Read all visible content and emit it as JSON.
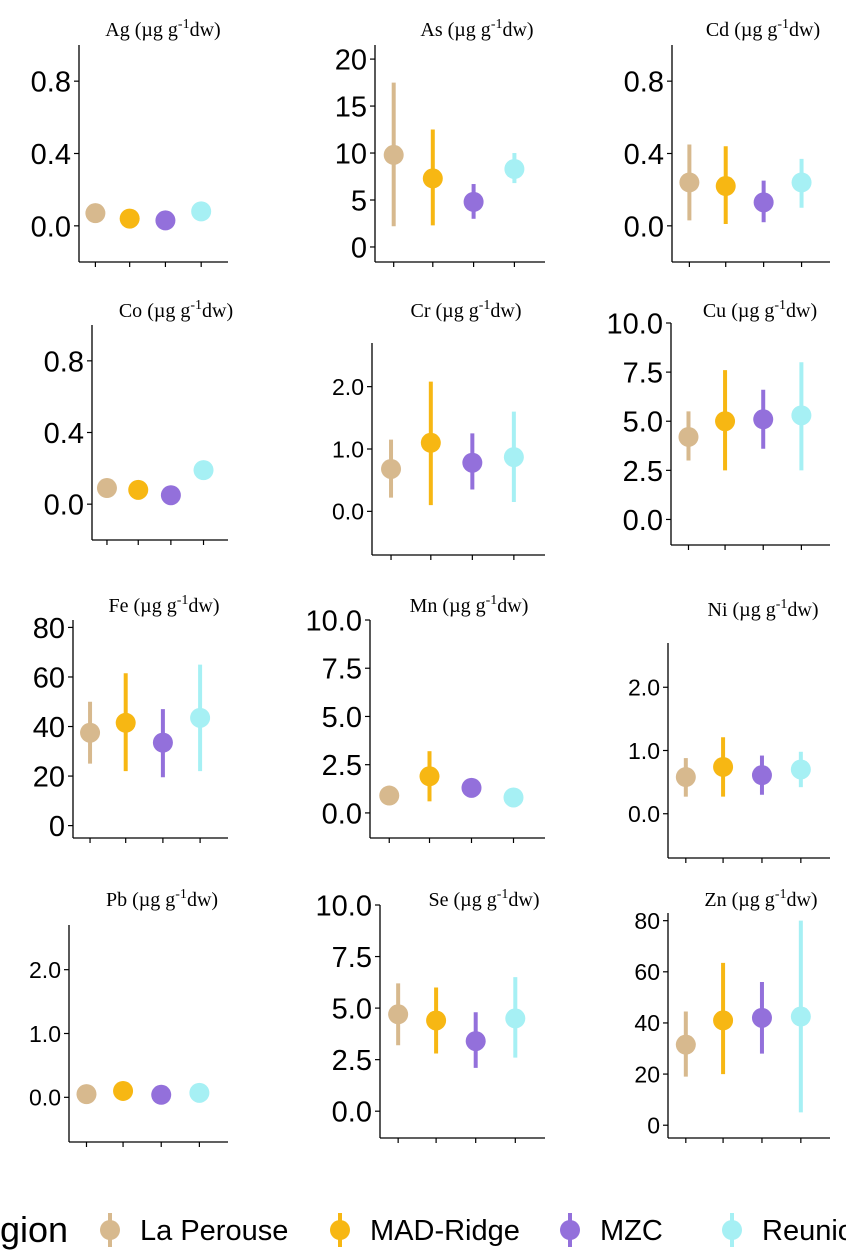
{
  "legend": {
    "title": "gion",
    "items": [
      {
        "label": "La Perouse",
        "color": "#d7b98e"
      },
      {
        "label": "MAD-Ridge",
        "color": "#f7b713"
      },
      {
        "label": "MZC",
        "color": "#9370db"
      },
      {
        "label": "Reunio",
        "color": "#a6f0f4"
      }
    ]
  },
  "chart_data": [
    {
      "type": "scatter",
      "element": "Ag",
      "unit": "(µg g",
      "sup": "-1",
      "unit_end": "dw)",
      "yticks": [
        "0.0",
        "0.4",
        "0.8"
      ],
      "ylim": [
        -0.2,
        1.0
      ],
      "points": [
        {
          "region": "La Perouse",
          "y": 0.07,
          "lo": 0.05,
          "hi": 0.09
        },
        {
          "region": "MAD-Ridge",
          "y": 0.04,
          "lo": 0.03,
          "hi": 0.05
        },
        {
          "region": "MZC",
          "y": 0.03,
          "lo": 0.02,
          "hi": 0.04
        },
        {
          "region": "Reunio",
          "y": 0.08,
          "lo": 0.04,
          "hi": 0.13
        }
      ]
    },
    {
      "type": "scatter",
      "element": "As",
      "unit": "(µg g",
      "sup": "-1",
      "unit_end": "dw)",
      "yticks": [
        "0",
        "5",
        "10",
        "15",
        "20"
      ],
      "ylim": [
        -1.6,
        21.5
      ],
      "points": [
        {
          "region": "La Perouse",
          "y": 9.8,
          "lo": 2.2,
          "hi": 17.5
        },
        {
          "region": "MAD-Ridge",
          "y": 7.3,
          "lo": 2.3,
          "hi": 12.5
        },
        {
          "region": "MZC",
          "y": 4.8,
          "lo": 3.0,
          "hi": 6.7
        },
        {
          "region": "Reunio",
          "y": 8.3,
          "lo": 6.8,
          "hi": 10.0
        }
      ]
    },
    {
      "type": "scatter",
      "element": "Cd",
      "unit": "(µg g",
      "sup": "-1",
      "unit_end": "dw)",
      "yticks": [
        "0.0",
        "0.4",
        "0.8"
      ],
      "ylim": [
        -0.2,
        1.0
      ],
      "points": [
        {
          "region": "La Perouse",
          "y": 0.24,
          "lo": 0.03,
          "hi": 0.45
        },
        {
          "region": "MAD-Ridge",
          "y": 0.22,
          "lo": 0.01,
          "hi": 0.44
        },
        {
          "region": "MZC",
          "y": 0.13,
          "lo": 0.02,
          "hi": 0.25
        },
        {
          "region": "Reunio",
          "y": 0.24,
          "lo": 0.1,
          "hi": 0.37
        }
      ]
    },
    {
      "type": "scatter",
      "element": "Co",
      "unit": "(µg g",
      "sup": "-1",
      "unit_end": "dw)",
      "yticks": [
        "0.0",
        "0.4",
        "0.8"
      ],
      "ylim": [
        -0.2,
        1.0
      ],
      "points": [
        {
          "region": "La Perouse",
          "y": 0.09,
          "lo": 0.07,
          "hi": 0.11
        },
        {
          "region": "MAD-Ridge",
          "y": 0.08,
          "lo": 0.07,
          "hi": 0.1
        },
        {
          "region": "MZC",
          "y": 0.05,
          "lo": 0.04,
          "hi": 0.07
        },
        {
          "region": "Reunio",
          "y": 0.19,
          "lo": 0.15,
          "hi": 0.24
        }
      ]
    },
    {
      "type": "scatter",
      "element": "Cr",
      "unit": "(µg g",
      "sup": "-1",
      "unit_end": "dw)",
      "yticks": [
        "0.0",
        "1.0",
        "2.0"
      ],
      "ylim": [
        -0.7,
        2.7
      ],
      "points": [
        {
          "region": "La Perouse",
          "y": 0.68,
          "lo": 0.22,
          "hi": 1.15
        },
        {
          "region": "MAD-Ridge",
          "y": 1.1,
          "lo": 0.1,
          "hi": 2.08
        },
        {
          "region": "MZC",
          "y": 0.78,
          "lo": 0.35,
          "hi": 1.25
        },
        {
          "region": "Reunio",
          "y": 0.87,
          "lo": 0.15,
          "hi": 1.6
        }
      ]
    },
    {
      "type": "scatter",
      "element": "Cu",
      "unit": "(µg g",
      "sup": "-1",
      "unit_end": "dw)",
      "yticks": [
        "0.0",
        "2.5",
        "5.0",
        "7.5",
        "10.0"
      ],
      "ylim": [
        -1.3,
        10.0
      ],
      "points": [
        {
          "region": "La Perouse",
          "y": 4.2,
          "lo": 3.0,
          "hi": 5.5
        },
        {
          "region": "MAD-Ridge",
          "y": 5.0,
          "lo": 2.5,
          "hi": 7.6
        },
        {
          "region": "MZC",
          "y": 5.1,
          "lo": 3.6,
          "hi": 6.6
        },
        {
          "region": "Reunio",
          "y": 5.3,
          "lo": 2.5,
          "hi": 8.0
        }
      ]
    },
    {
      "type": "scatter",
      "element": "Fe",
      "unit": "(µg g",
      "sup": "-1",
      "unit_end": "dw)",
      "yticks": [
        "0",
        "20",
        "40",
        "60",
        "80"
      ],
      "ylim": [
        -5,
        83
      ],
      "points": [
        {
          "region": "La Perouse",
          "y": 37.5,
          "lo": 25.0,
          "hi": 50.0
        },
        {
          "region": "MAD-Ridge",
          "y": 41.5,
          "lo": 22.0,
          "hi": 61.5
        },
        {
          "region": "MZC",
          "y": 33.5,
          "lo": 19.5,
          "hi": 47.0
        },
        {
          "region": "Reunio",
          "y": 43.5,
          "lo": 22.0,
          "hi": 65.0
        }
      ]
    },
    {
      "type": "scatter",
      "element": "Mn",
      "unit": "(µg g",
      "sup": "-1",
      "unit_end": "dw)",
      "yticks": [
        "0.0",
        "2.5",
        "5.0",
        "7.5",
        "10.0"
      ],
      "ylim": [
        -1.3,
        10.0
      ],
      "points": [
        {
          "region": "La Perouse",
          "y": 0.9,
          "lo": 0.7,
          "hi": 1.1
        },
        {
          "region": "MAD-Ridge",
          "y": 1.9,
          "lo": 0.6,
          "hi": 3.2
        },
        {
          "region": "MZC",
          "y": 1.3,
          "lo": 1.1,
          "hi": 1.5
        },
        {
          "region": "Reunio",
          "y": 0.8,
          "lo": 0.6,
          "hi": 1.0
        }
      ]
    },
    {
      "type": "scatter",
      "element": "Ni",
      "unit": "(µg g",
      "sup": "-1",
      "unit_end": "dw)",
      "yticks": [
        "0.0",
        "1.0",
        "2.0"
      ],
      "ylim": [
        -0.7,
        2.7
      ],
      "points": [
        {
          "region": "La Perouse",
          "y": 0.58,
          "lo": 0.27,
          "hi": 0.88
        },
        {
          "region": "MAD-Ridge",
          "y": 0.74,
          "lo": 0.27,
          "hi": 1.21
        },
        {
          "region": "MZC",
          "y": 0.61,
          "lo": 0.3,
          "hi": 0.92
        },
        {
          "region": "Reunio",
          "y": 0.7,
          "lo": 0.42,
          "hi": 0.98
        }
      ]
    },
    {
      "type": "scatter",
      "element": "Pb",
      "unit": "(µg g",
      "sup": "-1",
      "unit_end": "dw)",
      "yticks": [
        "0.0",
        "1.0",
        "2.0"
      ],
      "ylim": [
        -0.7,
        2.7
      ],
      "points": [
        {
          "region": "La Perouse",
          "y": 0.05,
          "lo": 0.02,
          "hi": 0.08
        },
        {
          "region": "MAD-Ridge",
          "y": 0.1,
          "lo": 0.06,
          "hi": 0.14
        },
        {
          "region": "MZC",
          "y": 0.04,
          "lo": 0.02,
          "hi": 0.06
        },
        {
          "region": "Reunio",
          "y": 0.07,
          "lo": 0.04,
          "hi": 0.1
        }
      ]
    },
    {
      "type": "scatter",
      "element": "Se",
      "unit": "(µg g",
      "sup": "-1",
      "unit_end": "dw)",
      "yticks": [
        "0.0",
        "2.5",
        "5.0",
        "7.5",
        "10.0"
      ],
      "ylim": [
        -1.3,
        10.0
      ],
      "points": [
        {
          "region": "La Perouse",
          "y": 4.7,
          "lo": 3.2,
          "hi": 6.2
        },
        {
          "region": "MAD-Ridge",
          "y": 4.4,
          "lo": 2.8,
          "hi": 6.0
        },
        {
          "region": "MZC",
          "y": 3.4,
          "lo": 2.1,
          "hi": 4.8
        },
        {
          "region": "Reunio",
          "y": 4.5,
          "lo": 2.6,
          "hi": 6.5
        }
      ]
    },
    {
      "type": "scatter",
      "element": "Zn",
      "unit": "(µg g",
      "sup": "-1",
      "unit_end": "dw)",
      "yticks": [
        "0",
        "20",
        "40",
        "60",
        "80"
      ],
      "ylim": [
        -5,
        83
      ],
      "points": [
        {
          "region": "La Perouse",
          "y": 31.5,
          "lo": 19.0,
          "hi": 44.5
        },
        {
          "region": "MAD-Ridge",
          "y": 41.0,
          "lo": 20.0,
          "hi": 63.5
        },
        {
          "region": "MZC",
          "y": 42.0,
          "lo": 28.0,
          "hi": 56.0
        },
        {
          "region": "Reunio",
          "y": 42.5,
          "lo": 5.0,
          "hi": 80.0
        }
      ]
    }
  ]
}
